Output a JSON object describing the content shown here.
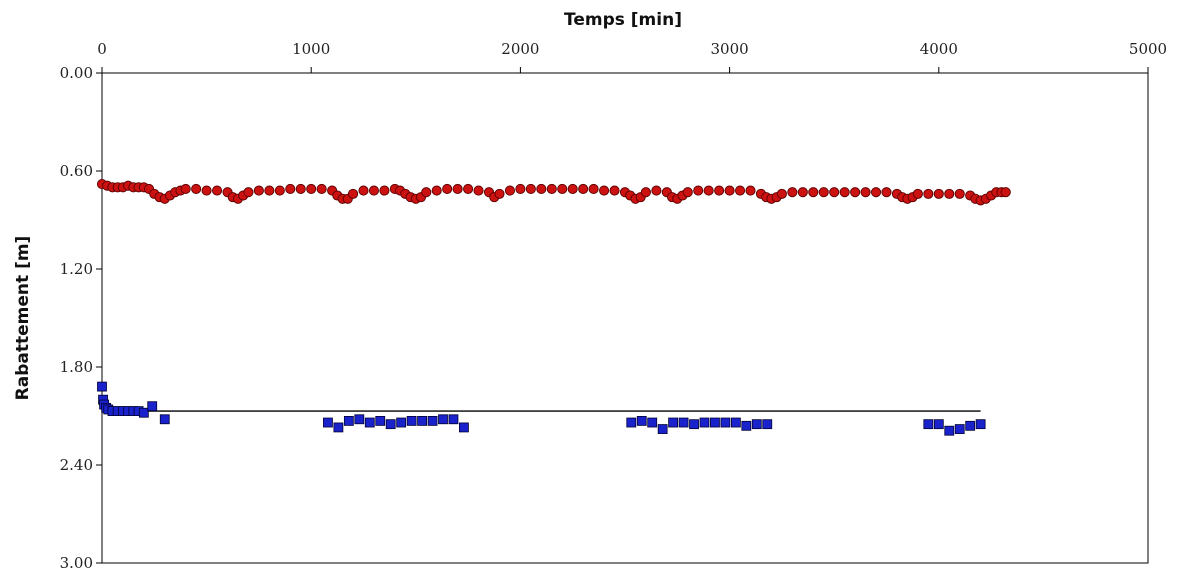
{
  "chart_data": {
    "type": "scatter",
    "title": "",
    "xlabel": "Temps [min]",
    "ylabel": "Rabattement [m]",
    "xaxis_position": "top",
    "yaxis_inverted": true,
    "xlim": [
      0,
      5000
    ],
    "ylim": [
      0.0,
      3.0
    ],
    "xticks": [
      0,
      1000,
      2000,
      3000,
      4000,
      5000
    ],
    "xtick_labels": [
      "0",
      "1000",
      "2000",
      "3000",
      "4000",
      "5000"
    ],
    "yticks": [
      0.0,
      0.6,
      1.2,
      1.8,
      2.4,
      3.0
    ],
    "ytick_labels": [
      "0.00",
      "0.60",
      "1.20",
      "1.80",
      "2.40",
      "3.00"
    ],
    "grid": false,
    "legend": "none",
    "series": [
      {
        "marker": "circle",
        "color": "#cc1111",
        "x": [
          0,
          25,
          50,
          75,
          100,
          125,
          150,
          175,
          200,
          225,
          250,
          275,
          300,
          325,
          350,
          375,
          400,
          450,
          500,
          550,
          600,
          625,
          650,
          675,
          700,
          750,
          800,
          850,
          900,
          950,
          1000,
          1050,
          1100,
          1125,
          1150,
          1175,
          1200,
          1250,
          1300,
          1350,
          1400,
          1425,
          1450,
          1475,
          1500,
          1525,
          1550,
          1600,
          1650,
          1700,
          1750,
          1800,
          1850,
          1875,
          1900,
          1950,
          2000,
          2050,
          2100,
          2150,
          2200,
          2250,
          2300,
          2350,
          2400,
          2450,
          2500,
          2525,
          2550,
          2575,
          2600,
          2650,
          2700,
          2725,
          2750,
          2775,
          2800,
          2850,
          2900,
          2950,
          3000,
          3050,
          3100,
          3150,
          3175,
          3200,
          3225,
          3250,
          3300,
          3350,
          3400,
          3450,
          3500,
          3550,
          3600,
          3650,
          3700,
          3750,
          3800,
          3825,
          3850,
          3875,
          3900,
          3950,
          4000,
          4050,
          4100,
          4150,
          4175,
          4200,
          4225,
          4250,
          4275,
          4300,
          4320
        ],
        "y": [
          0.68,
          0.69,
          0.7,
          0.7,
          0.7,
          0.69,
          0.7,
          0.7,
          0.7,
          0.71,
          0.74,
          0.76,
          0.77,
          0.75,
          0.73,
          0.72,
          0.71,
          0.71,
          0.72,
          0.72,
          0.73,
          0.76,
          0.77,
          0.75,
          0.73,
          0.72,
          0.72,
          0.72,
          0.71,
          0.71,
          0.71,
          0.71,
          0.72,
          0.75,
          0.77,
          0.77,
          0.74,
          0.72,
          0.72,
          0.72,
          0.71,
          0.72,
          0.74,
          0.76,
          0.77,
          0.76,
          0.73,
          0.72,
          0.71,
          0.71,
          0.71,
          0.72,
          0.73,
          0.76,
          0.74,
          0.72,
          0.71,
          0.71,
          0.71,
          0.71,
          0.71,
          0.71,
          0.71,
          0.71,
          0.72,
          0.72,
          0.73,
          0.75,
          0.77,
          0.76,
          0.73,
          0.72,
          0.73,
          0.76,
          0.77,
          0.75,
          0.73,
          0.72,
          0.72,
          0.72,
          0.72,
          0.72,
          0.72,
          0.74,
          0.76,
          0.77,
          0.76,
          0.74,
          0.73,
          0.73,
          0.73,
          0.73,
          0.73,
          0.73,
          0.73,
          0.73,
          0.73,
          0.73,
          0.74,
          0.76,
          0.77,
          0.76,
          0.74,
          0.74,
          0.74,
          0.74,
          0.74,
          0.75,
          0.77,
          0.78,
          0.77,
          0.75,
          0.73,
          0.73,
          0.73
        ]
      },
      {
        "marker": "square",
        "color": "#1a22cc",
        "x": [
          0,
          5,
          10,
          20,
          30,
          50,
          75,
          100,
          125,
          150,
          175,
          200,
          240,
          300,
          1080,
          1130,
          1180,
          1230,
          1280,
          1330,
          1380,
          1430,
          1480,
          1530,
          1580,
          1630,
          1680,
          1730,
          2530,
          2580,
          2630,
          2680,
          2730,
          2780,
          2830,
          2880,
          2930,
          2980,
          3030,
          3080,
          3130,
          3180,
          3950,
          4000,
          4050,
          4100,
          4150,
          4200
        ],
        "y": [
          1.92,
          2.0,
          2.03,
          2.05,
          2.06,
          2.07,
          2.07,
          2.07,
          2.07,
          2.07,
          2.07,
          2.08,
          2.04,
          2.12,
          2.14,
          2.17,
          2.13,
          2.12,
          2.14,
          2.13,
          2.15,
          2.14,
          2.13,
          2.13,
          2.13,
          2.12,
          2.12,
          2.17,
          2.14,
          2.13,
          2.14,
          2.18,
          2.14,
          2.14,
          2.15,
          2.14,
          2.14,
          2.14,
          2.14,
          2.16,
          2.15,
          2.15,
          2.15,
          2.15,
          2.19,
          2.18,
          2.16,
          2.15
        ]
      }
    ],
    "reference_lines": [
      {
        "color": "#000000",
        "x": [
          10,
          4200
        ],
        "y": [
          2.07,
          2.07
        ]
      }
    ]
  }
}
